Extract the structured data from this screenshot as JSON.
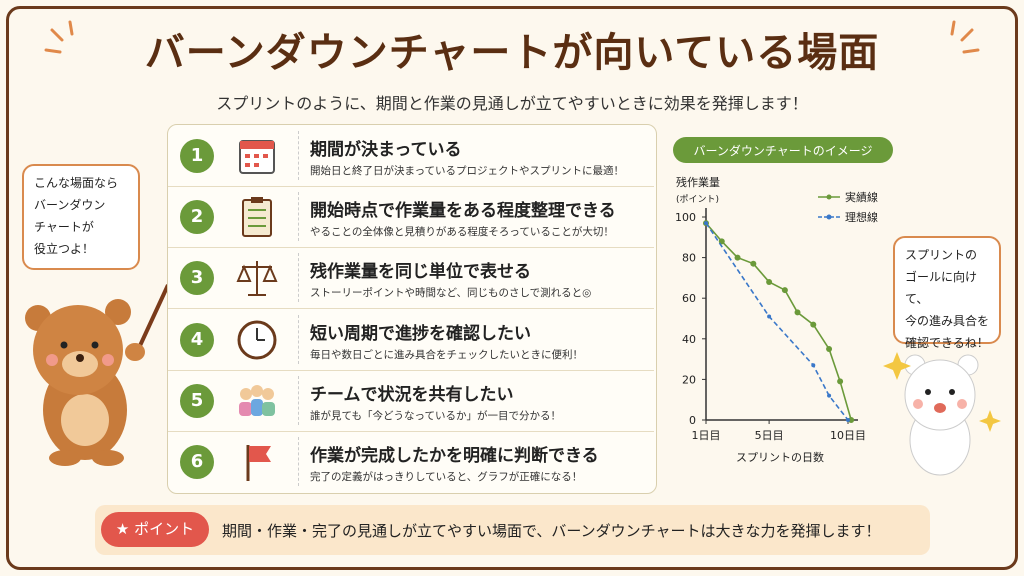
{
  "header": {
    "title": "バーンダウンチャートが向いている場面",
    "subtitle": "スプリントのように、期間と作業の見通しが立てやすいときに効果を発揮します！"
  },
  "items": [
    {
      "number": "1",
      "title": "期間が決まっている",
      "description": "開始日と終了日が決まっているプロジェクトやスプリントに最適！"
    },
    {
      "number": "2",
      "title": "開始時点で作業量をある程度整理できる",
      "description": "やることの全体像と見積りがある程度そろっていることが大切！"
    },
    {
      "number": "3",
      "title": "残作業量を同じ単位で表せる",
      "description": "ストーリーポイントや時間など、同じものさしで測れると◎"
    },
    {
      "number": "4",
      "title": "短い周期で進捗を確認したい",
      "description": "毎日や数日ごとに進み具合をチェックしたいときに便利！"
    },
    {
      "number": "5",
      "title": "チームで状況を共有したい",
      "description": "誰が見ても「今どうなっているか」が一目で分かる！"
    },
    {
      "number": "6",
      "title": "作業が完成したかを明確に判断できる",
      "description": "完了の定義がはっきりしていると、グラフが正確になる！"
    }
  ],
  "left_bubble": [
    "こんな場面なら",
    "バーンダウン",
    "チャートが",
    "役立つよ！"
  ],
  "right_bubble": [
    "スプリントの",
    "ゴールに向けて、",
    "今の進み具合を",
    "確認できるね！"
  ],
  "point": {
    "label": "ポイント",
    "text": "期間・作業・完了の見通しが立てやすい場面で、バーンダウンチャートは大きな力を発揮します！"
  },
  "chart_data": {
    "type": "line",
    "title": "バーンダウンチャートのイメージ",
    "y_label": [
      "残作業量",
      "(ポイント)"
    ],
    "x_label": "スプリントの日数",
    "series": [
      {
        "name": "実績線",
        "color": "#6b9a3a",
        "x": [
          1,
          2,
          3,
          4,
          5,
          6,
          6.8,
          7.8,
          8.8,
          9.5,
          10.2
        ],
        "values": [
          97,
          88,
          80,
          77,
          68,
          64,
          53,
          47,
          35,
          19,
          0
        ]
      },
      {
        "name": "理想線",
        "color": "#3a78c9",
        "x": [
          1,
          5,
          7.8,
          8.8,
          10
        ],
        "values": [
          97,
          51,
          27,
          12,
          0
        ]
      }
    ],
    "xlim": [
      1,
      10
    ],
    "xticks": [
      {
        "value": 1,
        "label": "1日目"
      },
      {
        "value": 5,
        "label": "5日目"
      },
      {
        "value": 10,
        "label": "10日目"
      }
    ],
    "ylim": [
      0,
      100
    ],
    "yticks": [
      0,
      20,
      40,
      60,
      80,
      100
    ]
  }
}
